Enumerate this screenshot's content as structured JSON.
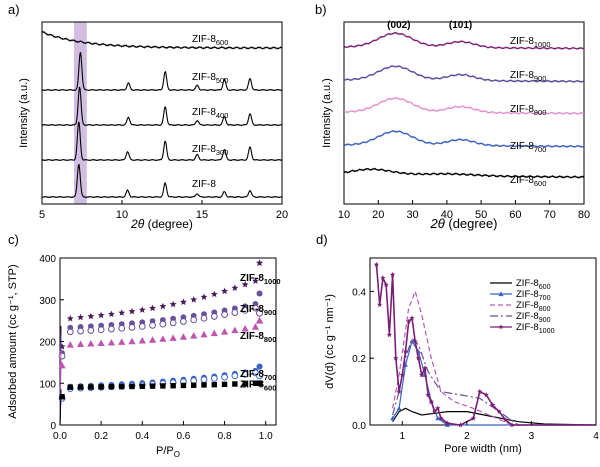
{
  "chart_data": [
    {
      "panel": "a)",
      "type": "line",
      "xlabel_var": "2θ",
      "xlabel_unit": " (degree)",
      "ylabel": "Intensity (a.u.)",
      "xlim": [
        5,
        20
      ],
      "xticks": [
        "5",
        "10",
        "15",
        "20"
      ],
      "highlight_range": [
        7.0,
        7.8
      ],
      "colors": {
        "line": "#000000",
        "highlight": "#c9b3dd"
      },
      "series": [
        {
          "base": "ZIF-8",
          "sub": "600",
          "style": "amorphous",
          "peaks": []
        },
        {
          "base": "ZIF-8",
          "sub": "500",
          "style": "crystal",
          "peaks": [
            [
              7.4,
              1.0
            ],
            [
              10.4,
              0.18
            ],
            [
              12.7,
              0.48
            ],
            [
              14.7,
              0.12
            ],
            [
              16.4,
              0.28
            ],
            [
              18.0,
              0.3
            ]
          ]
        },
        {
          "base": "ZIF-8",
          "sub": "400",
          "style": "crystal",
          "peaks": [
            [
              7.35,
              1.0
            ],
            [
              10.4,
              0.2
            ],
            [
              12.7,
              0.48
            ],
            [
              14.7,
              0.12
            ],
            [
              16.4,
              0.22
            ],
            [
              18.0,
              0.3
            ]
          ]
        },
        {
          "base": "ZIF-8",
          "sub": "300",
          "style": "crystal",
          "peaks": [
            [
              7.3,
              1.0
            ],
            [
              10.35,
              0.22
            ],
            [
              12.7,
              0.5
            ],
            [
              14.7,
              0.14
            ],
            [
              16.4,
              0.28
            ],
            [
              18.0,
              0.34
            ]
          ]
        },
        {
          "base": "ZIF-8",
          "sub": "",
          "style": "crystal",
          "peaks": [
            [
              7.3,
              1.0
            ],
            [
              10.35,
              0.2
            ],
            [
              12.7,
              0.42
            ],
            [
              14.7,
              0.1
            ],
            [
              16.4,
              0.16
            ],
            [
              18.0,
              0.2
            ]
          ]
        }
      ]
    },
    {
      "panel": "b)",
      "type": "line",
      "xlabel_var": "2θ",
      "xlabel_unit": " (degree)",
      "ylabel": "Intensity (a.u.)",
      "xlim": [
        10,
        80
      ],
      "xticks": [
        "10",
        "20",
        "30",
        "40",
        "50",
        "60",
        "70",
        "80"
      ],
      "annotations": [
        {
          "text": "(002)",
          "x": 26
        },
        {
          "text": "(101)",
          "x": 44
        }
      ],
      "series": [
        {
          "base": "ZIF-8",
          "sub": "1000",
          "color": "#7b1f76"
        },
        {
          "base": "ZIF-8",
          "sub": "900",
          "color": "#5a4a9e"
        },
        {
          "base": "ZIF-8",
          "sub": "800",
          "color": "#e38fcb"
        },
        {
          "base": "ZIF-8",
          "sub": "700",
          "color": "#3b5fc0"
        },
        {
          "base": "ZIF-8",
          "sub": "600",
          "color": "#000000"
        }
      ]
    },
    {
      "panel": "c)",
      "type": "scatter",
      "xlabel": "P/P",
      "xlabel_sub": "O",
      "ylabel": "Adsorbed amount (cc g⁻¹, STP)",
      "xlim": [
        0,
        1.05
      ],
      "ylim": [
        0,
        400
      ],
      "xticks": [
        "0.0",
        "0.2",
        "0.4",
        "0.6",
        "0.8",
        "1.0"
      ],
      "yticks": [
        "0",
        "100",
        "200",
        "300",
        "400"
      ],
      "x": [
        0.01,
        0.05,
        0.1,
        0.15,
        0.2,
        0.25,
        0.3,
        0.35,
        0.4,
        0.45,
        0.5,
        0.55,
        0.6,
        0.65,
        0.7,
        0.75,
        0.8,
        0.85,
        0.9,
        0.95
      ],
      "series": [
        {
          "base": "ZIF-8",
          "sub": "1000",
          "color": "#4b1b5c",
          "marker": "star",
          "start": 250,
          "end": 345,
          "desorb": 388
        },
        {
          "base": "ZIF-8",
          "sub": "900",
          "color": "#6a4f9a",
          "marker": "circle",
          "start": 230,
          "end": 290,
          "desorb": 315
        },
        {
          "base": "ZIF-8",
          "sub": "900",
          "color": "#6a4f9a",
          "marker": "circle-open",
          "start": 220,
          "end": 280,
          "desorb": 268
        },
        {
          "base": "ZIF-8",
          "sub": "800",
          "color": "#c054b0",
          "marker": "triangle",
          "start": 190,
          "end": 235,
          "desorb": 250
        },
        {
          "base": "ZIF-8",
          "sub": "700",
          "color": "#3a64c8",
          "marker": "circle",
          "start": 90,
          "end": 130,
          "desorb": 140
        },
        {
          "base": "ZIF-8",
          "sub": "700",
          "color": "#3a64c8",
          "marker": "circle-open",
          "start": 85,
          "end": 125,
          "desorb": 118
        },
        {
          "base": "ZIF-8",
          "sub": "600",
          "color": "#000000",
          "marker": "square",
          "start": 90,
          "end": 100,
          "desorb": 100
        }
      ],
      "labels": [
        {
          "base": "ZIF-8",
          "sub": "1000",
          "y": 355
        },
        {
          "base": "ZIF-8",
          "sub": "900",
          "y": 280
        },
        {
          "base": "ZIF-8",
          "sub": "800",
          "y": 215
        },
        {
          "base": "ZIF-8",
          "sub": "700",
          "y": 125
        },
        {
          "base": "ZIF-8",
          "sub": "600",
          "y": 100
        }
      ]
    },
    {
      "panel": "d)",
      "type": "line",
      "xlabel": "Pore width (nm)",
      "ylabel": "dV(d) (cc g⁻¹ nm⁻¹)",
      "xlim": [
        0.5,
        4
      ],
      "ylim": [
        0,
        0.5
      ],
      "xticks": [
        "1",
        "2",
        "3",
        "4"
      ],
      "yticks": [
        "0.0",
        "0.2",
        "0.4"
      ],
      "legend_position": "top-right",
      "series": [
        {
          "base": "ZIF-8",
          "sub": "600",
          "color": "#000000",
          "dash": "",
          "marker": "",
          "points": [
            [
              0.85,
              0.01
            ],
            [
              0.95,
              0.04
            ],
            [
              1.05,
              0.05
            ],
            [
              1.15,
              0.04
            ],
            [
              1.3,
              0.03
            ],
            [
              1.5,
              0.035
            ],
            [
              1.7,
              0.04
            ],
            [
              2.0,
              0.04
            ],
            [
              2.4,
              0.025
            ],
            [
              2.8,
              0.01
            ],
            [
              3.2,
              0.003
            ],
            [
              4.0,
              0.0
            ]
          ]
        },
        {
          "base": "ZIF-8",
          "sub": "700",
          "color": "#3a64c8",
          "dash": "",
          "marker": "triangle",
          "points": [
            [
              0.85,
              0.02
            ],
            [
              0.95,
              0.05
            ],
            [
              1.05,
              0.18
            ],
            [
              1.15,
              0.25
            ],
            [
              1.25,
              0.22
            ],
            [
              1.35,
              0.15
            ],
            [
              1.45,
              0.07
            ],
            [
              1.55,
              0.02
            ],
            [
              1.7,
              0.0
            ],
            [
              4.0,
              0.0
            ]
          ]
        },
        {
          "base": "ZIF-8",
          "sub": "800",
          "color": "#b05ab5",
          "dash": "5,3",
          "marker": "",
          "points": [
            [
              0.85,
              0.05
            ],
            [
              0.95,
              0.15
            ],
            [
              1.1,
              0.35
            ],
            [
              1.2,
              0.4
            ],
            [
              1.3,
              0.33
            ],
            [
              1.45,
              0.2
            ],
            [
              1.6,
              0.1
            ],
            [
              1.8,
              0.07
            ],
            [
              2.1,
              0.05
            ],
            [
              2.4,
              0.025
            ],
            [
              2.7,
              0.0
            ],
            [
              4.0,
              0.0
            ]
          ]
        },
        {
          "base": "ZIF-8",
          "sub": "900",
          "color": "#6a4f9a",
          "dash": "8,3,2,3",
          "marker": "",
          "points": [
            [
              0.85,
              0.03
            ],
            [
              0.95,
              0.1
            ],
            [
              1.05,
              0.2
            ],
            [
              1.15,
              0.26
            ],
            [
              1.25,
              0.24
            ],
            [
              1.4,
              0.16
            ],
            [
              1.6,
              0.1
            ],
            [
              1.9,
              0.09
            ],
            [
              2.2,
              0.08
            ],
            [
              2.5,
              0.04
            ],
            [
              2.8,
              0.0
            ],
            [
              4.0,
              0.0
            ]
          ]
        },
        {
          "base": "ZIF-8",
          "sub": "1000",
          "color": "#7b1f76",
          "dash": "",
          "marker": "star",
          "points": [
            [
              0.6,
              0.48
            ],
            [
              0.65,
              0.36
            ],
            [
              0.7,
              0.44
            ],
            [
              0.75,
              0.42
            ],
            [
              0.8,
              0.27
            ],
            [
              0.85,
              0.45
            ],
            [
              0.9,
              0.2
            ],
            [
              0.95,
              0.1
            ],
            [
              1.0,
              0.15
            ],
            [
              1.05,
              0.22
            ],
            [
              1.1,
              0.31
            ],
            [
              1.15,
              0.32
            ],
            [
              1.2,
              0.25
            ],
            [
              1.25,
              0.2
            ],
            [
              1.3,
              0.15
            ],
            [
              1.35,
              0.17
            ],
            [
              1.4,
              0.09
            ],
            [
              1.45,
              0.07
            ],
            [
              1.5,
              0.04
            ],
            [
              1.55,
              0.05
            ],
            [
              1.6,
              0.02
            ],
            [
              1.7,
              0.005
            ],
            [
              1.9,
              0.0
            ],
            [
              2.1,
              0.02
            ],
            [
              2.2,
              0.1
            ],
            [
              2.3,
              0.09
            ],
            [
              2.4,
              0.06
            ],
            [
              2.5,
              0.04
            ],
            [
              2.6,
              0.015
            ],
            [
              2.7,
              0.0
            ],
            [
              4.0,
              0.0
            ]
          ]
        }
      ]
    }
  ]
}
